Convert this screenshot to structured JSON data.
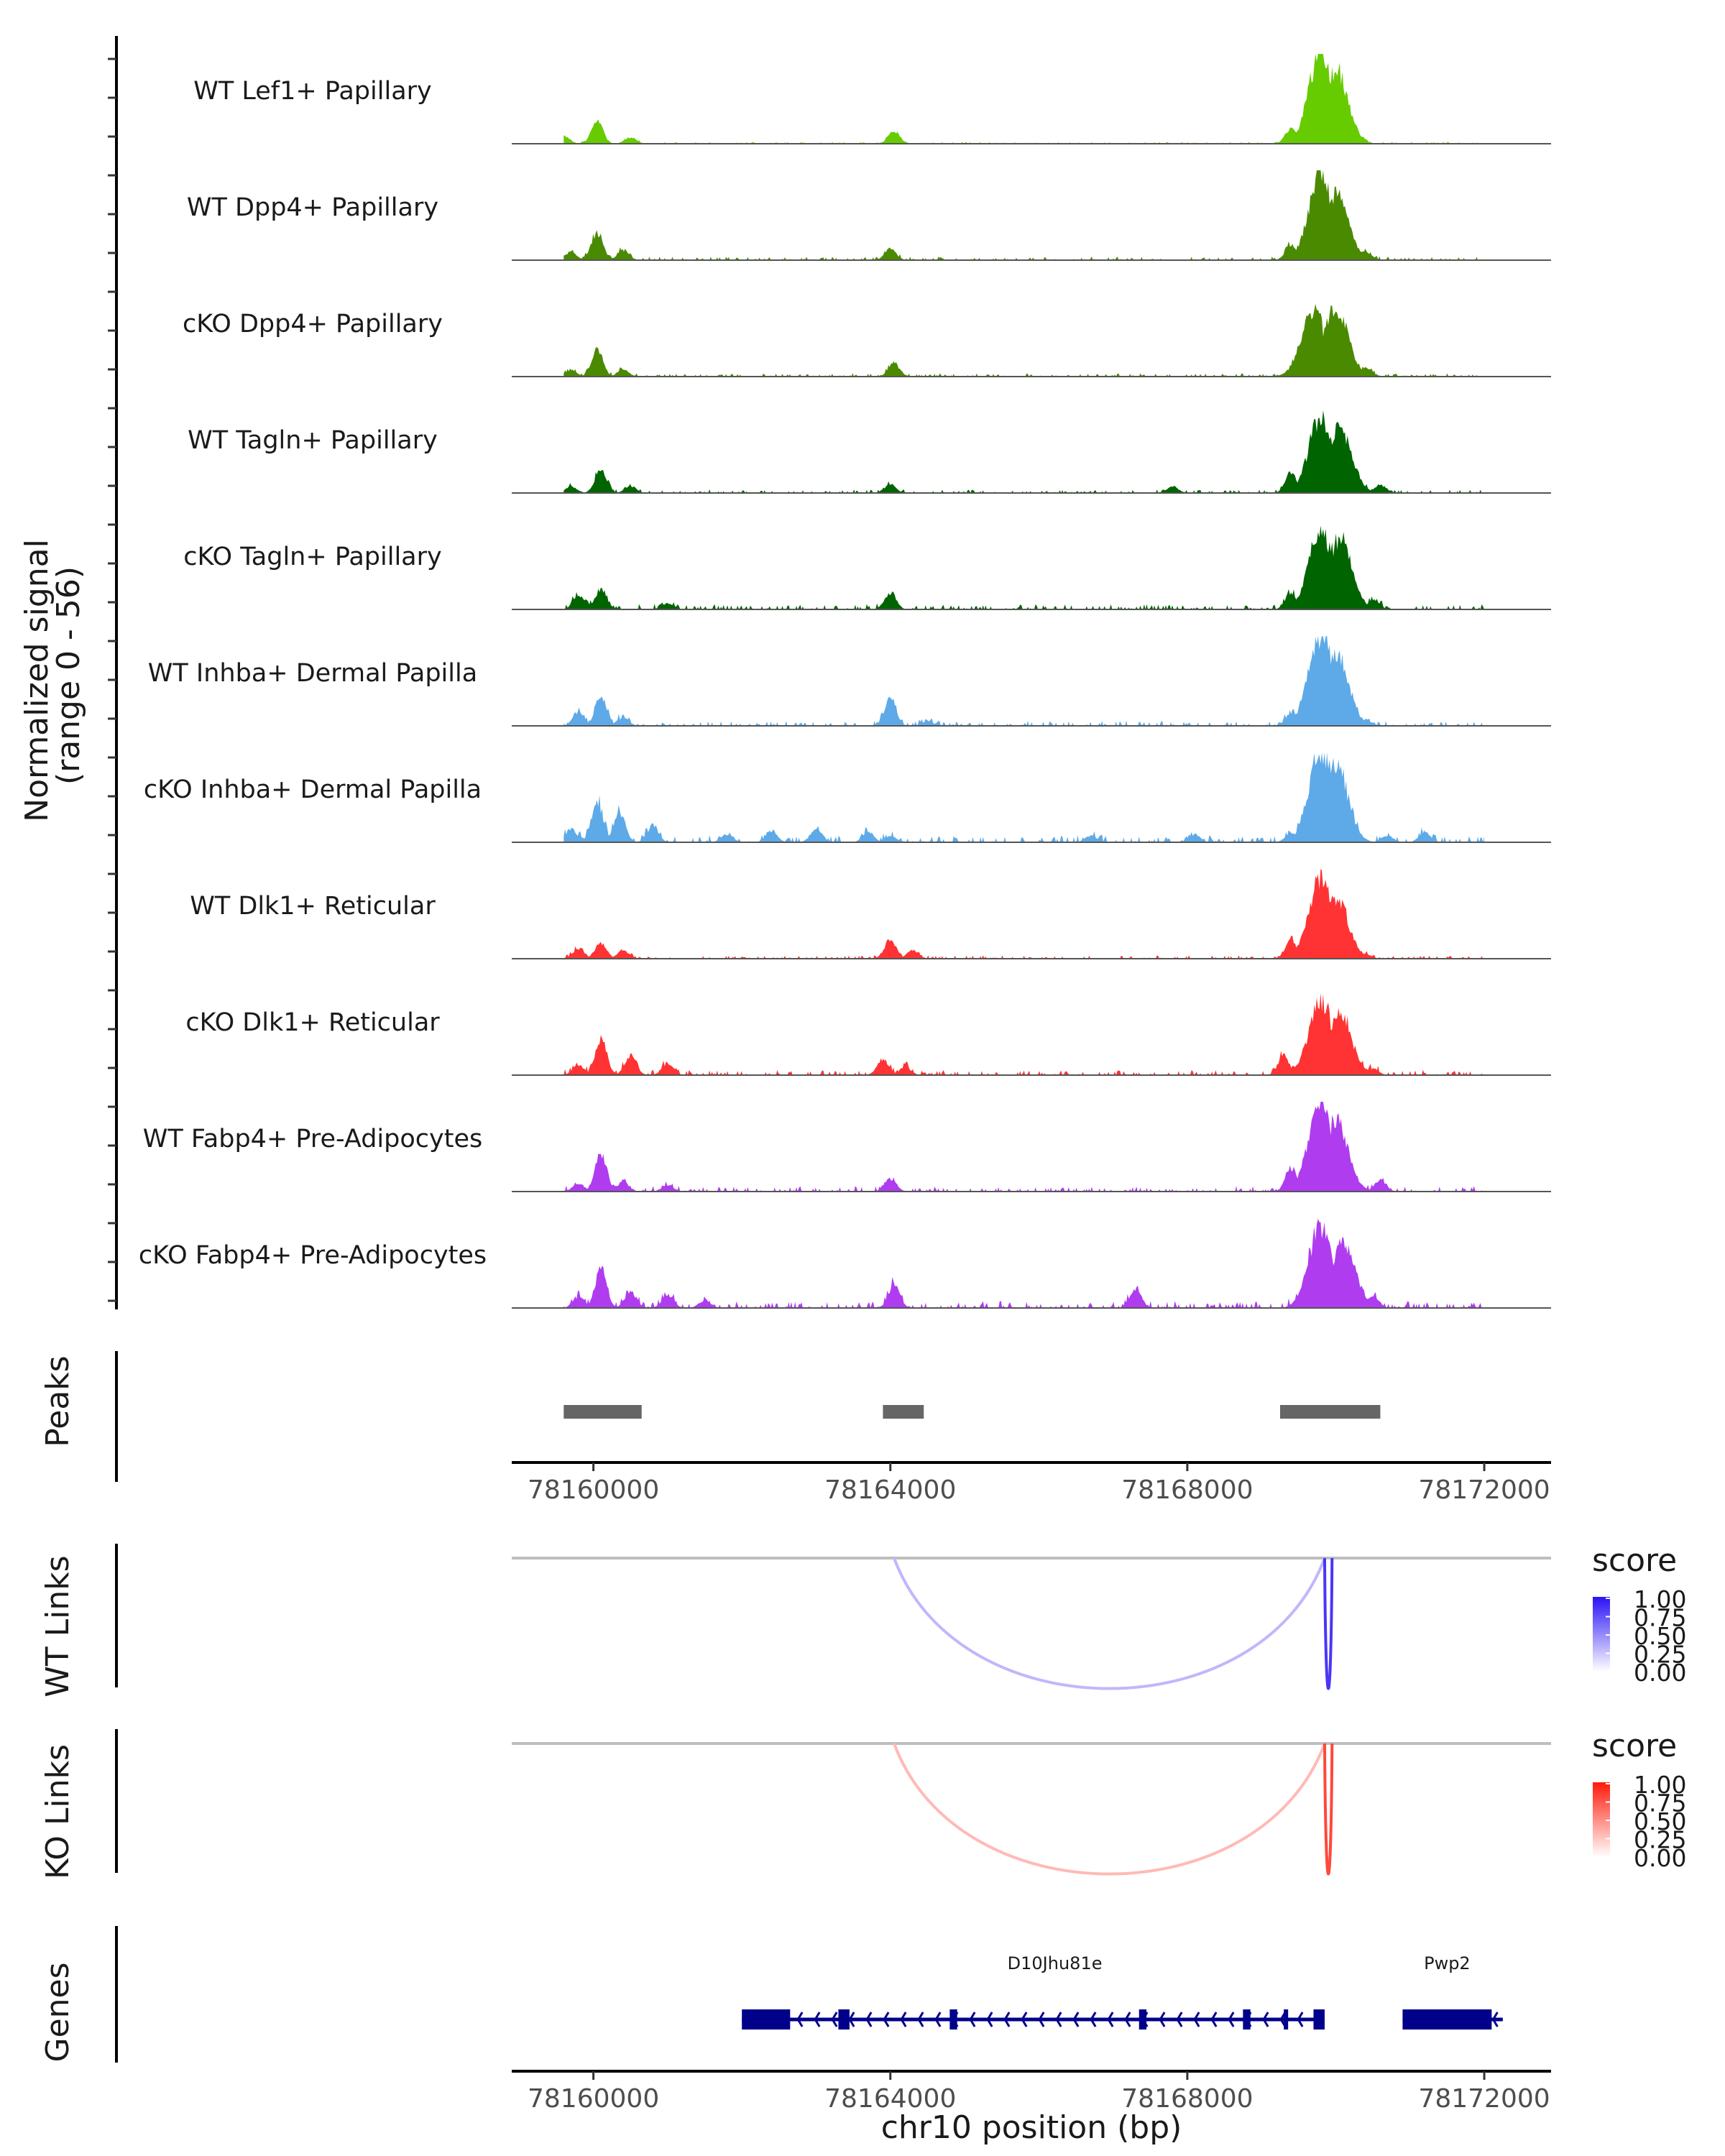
{
  "chart_data": {
    "type": "area",
    "title": "",
    "ylabel": "Normalized signal\n(range 0 - 56)",
    "ylabel_lines": [
      "Normalized signal",
      "(range 0 - 56)"
    ],
    "xlabel": "chr10 position (bp)",
    "chromosome": "chr10",
    "xlim": [
      78158900,
      78172900
    ],
    "x_ticks": [
      78160000,
      78164000,
      78168000,
      78172000
    ],
    "x_tick_labels": [
      "78160000",
      "78164000",
      "78168000",
      "78172000"
    ],
    "ylim": [
      0,
      56
    ],
    "grid": false,
    "coverage_tracks": [
      {
        "name": "WT Lef1+ Papillary",
        "color": "#66cc00",
        "peaks": [
          [
            78159600,
            5
          ],
          [
            78160050,
            14
          ],
          [
            78160500,
            4
          ],
          [
            78164050,
            8
          ],
          [
            78169400,
            10
          ],
          [
            78169800,
            56
          ],
          [
            78170000,
            46
          ],
          [
            78170300,
            6
          ]
        ],
        "noise": 1
      },
      {
        "name": "WT Dpp4+ Papillary",
        "color": "#4a8a00",
        "peaks": [
          [
            78159700,
            5
          ],
          [
            78160050,
            17
          ],
          [
            78160400,
            6
          ],
          [
            78164000,
            7
          ],
          [
            78169400,
            10
          ],
          [
            78169800,
            52
          ],
          [
            78170000,
            40
          ],
          [
            78170400,
            5
          ]
        ],
        "noise": 2
      },
      {
        "name": "cKO Dpp4+ Papillary",
        "color": "#4a8a00",
        "peaks": [
          [
            78159700,
            4
          ],
          [
            78160050,
            16
          ],
          [
            78160400,
            4
          ],
          [
            78164050,
            8
          ],
          [
            78169500,
            16
          ],
          [
            78169700,
            40
          ],
          [
            78170000,
            42
          ],
          [
            78170400,
            6
          ]
        ],
        "noise": 2
      },
      {
        "name": "WT Tagln+ Papillary",
        "color": "#006400",
        "peaks": [
          [
            78159700,
            4
          ],
          [
            78160100,
            15
          ],
          [
            78160500,
            4
          ],
          [
            78164000,
            5
          ],
          [
            78167800,
            4
          ],
          [
            78169400,
            12
          ],
          [
            78169800,
            46
          ],
          [
            78170050,
            40
          ],
          [
            78170600,
            5
          ]
        ],
        "noise": 2
      },
      {
        "name": "cKO Tagln+ Papillary",
        "color": "#006400",
        "peaks": [
          [
            78159800,
            8
          ],
          [
            78160100,
            12
          ],
          [
            78161000,
            4
          ],
          [
            78164000,
            10
          ],
          [
            78169400,
            10
          ],
          [
            78169800,
            48
          ],
          [
            78170050,
            44
          ],
          [
            78170500,
            6
          ]
        ],
        "noise": 3
      },
      {
        "name": "WT Inhba+ Dermal Papilla",
        "color": "#5eaae8",
        "peaks": [
          [
            78159800,
            8
          ],
          [
            78160100,
            18
          ],
          [
            78160400,
            5
          ],
          [
            78164000,
            17
          ],
          [
            78164500,
            3
          ],
          [
            78169400,
            8
          ],
          [
            78169800,
            56
          ],
          [
            78170000,
            46
          ],
          [
            78170400,
            4
          ]
        ],
        "noise": 3
      },
      {
        "name": "cKO Inhba+ Dermal Papilla",
        "color": "#5eaae8",
        "peaks": [
          [
            78159700,
            8
          ],
          [
            78160050,
            26
          ],
          [
            78160350,
            18
          ],
          [
            78160800,
            10
          ],
          [
            78161800,
            5
          ],
          [
            78162400,
            7
          ],
          [
            78163000,
            8
          ],
          [
            78163700,
            6
          ],
          [
            78164000,
            4
          ],
          [
            78166700,
            4
          ],
          [
            78168100,
            5
          ],
          [
            78169400,
            6
          ],
          [
            78169800,
            56
          ],
          [
            78170000,
            48
          ],
          [
            78170700,
            4
          ],
          [
            78171200,
            6
          ]
        ],
        "noise": 4
      },
      {
        "name": "WT Dlk1+ Reticular",
        "color": "#ff3333",
        "peaks": [
          [
            78159800,
            6
          ],
          [
            78160100,
            10
          ],
          [
            78160400,
            5
          ],
          [
            78164000,
            12
          ],
          [
            78164300,
            5
          ],
          [
            78169400,
            12
          ],
          [
            78169800,
            50
          ],
          [
            78170000,
            38
          ],
          [
            78170400,
            3
          ]
        ],
        "noise": 2
      },
      {
        "name": "cKO Dlk1+ Reticular",
        "color": "#ff3333",
        "peaks": [
          [
            78159800,
            6
          ],
          [
            78160100,
            22
          ],
          [
            78160500,
            12
          ],
          [
            78161000,
            7
          ],
          [
            78163900,
            10
          ],
          [
            78164200,
            5
          ],
          [
            78169300,
            12
          ],
          [
            78169800,
            45
          ],
          [
            78170050,
            38
          ],
          [
            78170500,
            4
          ]
        ],
        "noise": 3
      },
      {
        "name": "WT Fabp4+ Pre-Adipocytes",
        "color": "#b03cf0",
        "peaks": [
          [
            78159800,
            5
          ],
          [
            78160100,
            24
          ],
          [
            78160400,
            6
          ],
          [
            78161000,
            4
          ],
          [
            78164000,
            8
          ],
          [
            78169400,
            14
          ],
          [
            78169800,
            56
          ],
          [
            78170000,
            44
          ],
          [
            78170600,
            7
          ]
        ],
        "noise": 3
      },
      {
        "name": "cKO Fabp4+ Pre-Adipocytes",
        "color": "#b03cf0",
        "peaks": [
          [
            78159800,
            7
          ],
          [
            78160100,
            24
          ],
          [
            78160500,
            10
          ],
          [
            78161000,
            8
          ],
          [
            78161500,
            5
          ],
          [
            78164050,
            14
          ],
          [
            78167300,
            12
          ],
          [
            78169800,
            50
          ],
          [
            78170100,
            40
          ],
          [
            78170500,
            8
          ]
        ],
        "noise": 4
      }
    ],
    "peaks_track": {
      "label": "Peaks",
      "color": "#666666",
      "regions": [
        [
          78159600,
          78160650
        ],
        [
          78163900,
          78164450
        ],
        [
          78169250,
          78170600
        ]
      ]
    },
    "links_tracks": [
      {
        "label": "WT Links",
        "legend_title": "score",
        "legend_ticks": [
          "1.00",
          "0.75",
          "0.50",
          "0.25",
          "0.00"
        ],
        "color_low": "#ffffff",
        "color_high": "#2a12f5",
        "links": [
          {
            "start": 78164050,
            "end": 78169850,
            "score": 0.3
          },
          {
            "start": 78169850,
            "end": 78169950,
            "score": 0.85
          }
        ]
      },
      {
        "label": "KO Links",
        "legend_title": "score",
        "legend_ticks": [
          "1.00",
          "0.75",
          "0.50",
          "0.25",
          "0.00"
        ],
        "color_low": "#ffffff",
        "color_high": "#ff1a0a",
        "links": [
          {
            "start": 78164050,
            "end": 78169850,
            "score": 0.3
          },
          {
            "start": 78169850,
            "end": 78169950,
            "score": 0.8
          }
        ]
      }
    ],
    "genes_track": {
      "label": "Genes",
      "color": "#00008b",
      "genes": [
        {
          "name": "D10Jhu81e",
          "strand": "-",
          "start": 78162000,
          "end": 78169850,
          "exons": [
            [
              78162000,
              78162650
            ],
            [
              78163300,
              78163450
            ],
            [
              78164800,
              78164900
            ],
            [
              78167350,
              78167450
            ],
            [
              78168750,
              78168850
            ],
            [
              78169300,
              78169350
            ],
            [
              78169700,
              78169850
            ]
          ]
        },
        {
          "name": "Pwp2",
          "strand": "-",
          "start": 78170900,
          "end": 78172250,
          "exons": [
            [
              78170900,
              78172100
            ]
          ]
        }
      ]
    }
  }
}
